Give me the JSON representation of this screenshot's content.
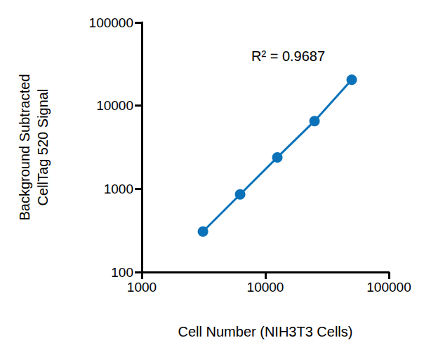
{
  "chart_data": {
    "type": "line",
    "x_label": "Cell Number (NIH3T3 Cells)",
    "y_label": "Background Subtracted\nCellTag 520 Signal",
    "annotation": "R² = 0.9687",
    "x": [
      3125,
      6250,
      12500,
      25000,
      50000
    ],
    "values": [
      307,
      857,
      2390,
      6530,
      20500
    ],
    "color": "#0b72b9",
    "marker": "circle",
    "log": true,
    "grid": false,
    "xlim": [
      1000,
      100000
    ],
    "xticks": [
      1000,
      10000,
      100000
    ],
    "ylim": [
      100,
      100000
    ],
    "yticks": [
      100,
      1000,
      10000,
      100000
    ]
  }
}
